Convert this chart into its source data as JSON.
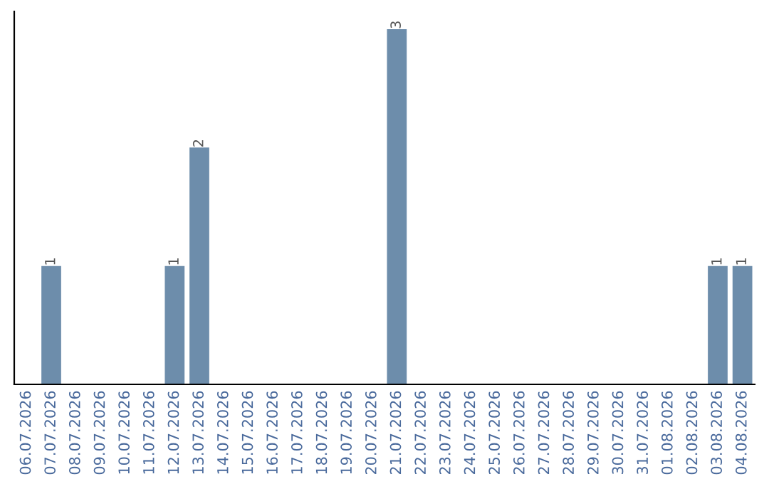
{
  "chart_data": {
    "type": "bar",
    "categories": [
      "06.07.2026",
      "07.07.2026",
      "08.07.2026",
      "09.07.2026",
      "10.07.2026",
      "11.07.2026",
      "12.07.2026",
      "13.07.2026",
      "14.07.2026",
      "15.07.2026",
      "16.07.2026",
      "17.07.2026",
      "18.07.2026",
      "19.07.2026",
      "20.07.2026",
      "21.07.2026",
      "22.07.2026",
      "23.07.2026",
      "24.07.2026",
      "25.07.2026",
      "26.07.2026",
      "27.07.2026",
      "28.07.2026",
      "29.07.2026",
      "30.07.2026",
      "31.07.2026",
      "01.08.2026",
      "02.08.2026",
      "03.08.2026",
      "04.08.2026"
    ],
    "values": [
      0,
      1,
      0,
      0,
      0,
      0,
      1,
      2,
      0,
      0,
      0,
      0,
      0,
      0,
      0,
      3,
      0,
      0,
      0,
      0,
      0,
      0,
      0,
      0,
      0,
      0,
      0,
      0,
      1,
      1
    ],
    "value_labels": [
      null,
      "1",
      null,
      null,
      null,
      null,
      "1",
      "2",
      null,
      null,
      null,
      null,
      null,
      null,
      null,
      "3",
      null,
      null,
      null,
      null,
      null,
      null,
      null,
      null,
      null,
      null,
      null,
      null,
      "1",
      "1"
    ],
    "color": "#6d8dab",
    "tick_labels": "x",
    "grid": false,
    "legend": false
  }
}
